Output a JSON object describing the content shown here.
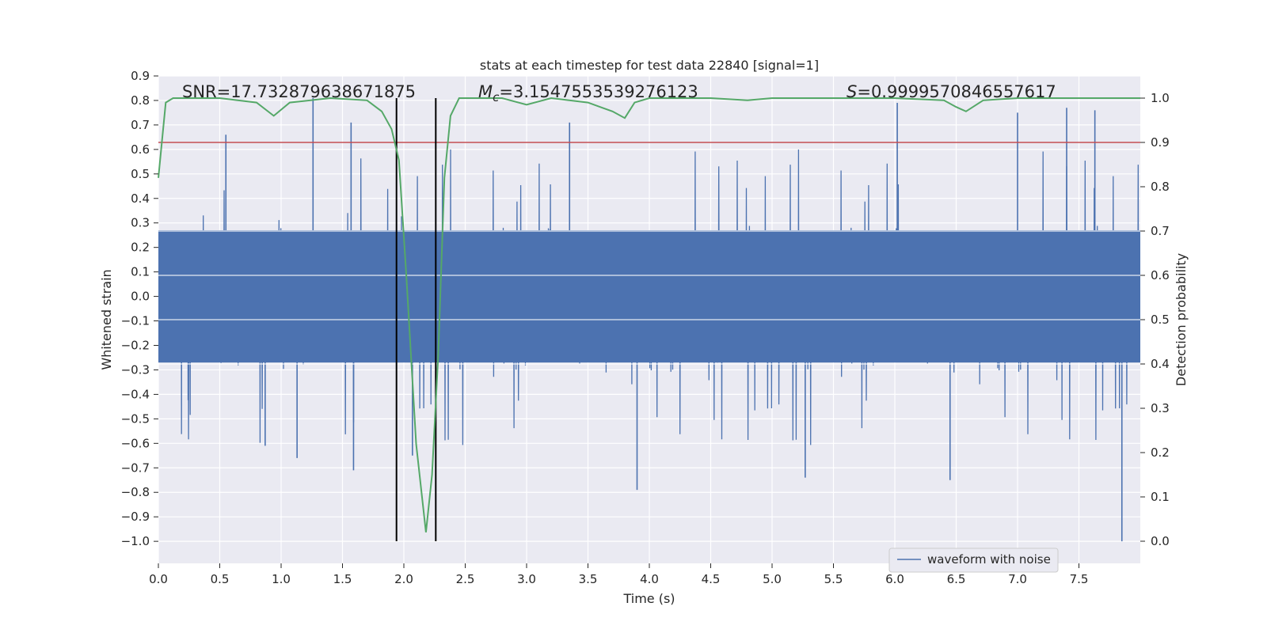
{
  "chart_data": {
    "type": "line",
    "title": "stats at each timestep for test data 22840 [signal=1]",
    "xlabel": "Time (s)",
    "ylabel": "Whitened strain",
    "ylabel_right": "Detection probability",
    "xlim": [
      0.0,
      8.0
    ],
    "ylim": [
      -1.09,
      0.9
    ],
    "ylim_right": [
      -0.05,
      1.05
    ],
    "x_ticks": [
      0.0,
      0.5,
      1.0,
      1.5,
      2.0,
      2.5,
      3.0,
      3.5,
      4.0,
      4.5,
      5.0,
      5.5,
      6.0,
      6.5,
      7.0,
      7.5
    ],
    "x_tick_labels": [
      "0.0",
      "0.5",
      "1.0",
      "1.5",
      "2.0",
      "2.5",
      "3.0",
      "3.5",
      "4.0",
      "4.5",
      "5.0",
      "5.5",
      "6.0",
      "6.5",
      "7.0",
      "7.5"
    ],
    "y_ticks": [
      0.9,
      0.8,
      0.7,
      0.6,
      0.5,
      0.4,
      0.3,
      0.2,
      0.1,
      0.0,
      -0.1,
      -0.2,
      -0.3,
      -0.4,
      -0.5,
      -0.6,
      -0.7,
      -0.8,
      -0.9,
      -1.0
    ],
    "y_tick_labels": [
      "0.9",
      "0.8",
      "0.7",
      "0.6",
      "0.5",
      "0.4",
      "0.3",
      "0.2",
      "0.1",
      "0.0",
      "−0.1",
      "−0.2",
      "−0.3",
      "−0.4",
      "−0.5",
      "−0.6",
      "−0.7",
      "−0.8",
      "−0.9",
      "−1.0"
    ],
    "y_ticks_right": [
      1.0,
      0.9,
      0.8,
      0.7,
      0.6,
      0.5,
      0.4,
      0.3,
      0.2,
      0.1,
      0.0
    ],
    "y_tick_labels_right": [
      "1.0",
      "0.9",
      "0.8",
      "0.7",
      "0.6",
      "0.5",
      "0.4",
      "0.3",
      "0.2",
      "0.1",
      "0.0"
    ],
    "grid": true,
    "legend_position": "lower-right",
    "annotations": {
      "snr": "SNR=17.732879638671875",
      "mc_symbol": "M",
      "mc_subscript": "c",
      "mc_value": "=3.1547553539276123",
      "s_symbol": "S",
      "s_value": "=0.9999570846557617"
    },
    "vertical_lines_x": [
      1.94,
      2.26
    ],
    "threshold_probability": 0.9,
    "series": [
      {
        "name": "waveform with noise",
        "axis": "left",
        "color": "#4c72b0",
        "style": "noise",
        "amplitude_core": 0.27,
        "spikes": [
          {
            "x": 0.55,
            "y": 0.66
          },
          {
            "x": 1.26,
            "y": 0.81
          },
          {
            "x": 1.57,
            "y": 0.71
          },
          {
            "x": 3.35,
            "y": 0.71
          },
          {
            "x": 6.02,
            "y": 0.79
          },
          {
            "x": 7.0,
            "y": 0.75
          },
          {
            "x": 7.4,
            "y": 0.77
          },
          {
            "x": 7.63,
            "y": 0.76
          },
          {
            "x": 1.13,
            "y": -0.66
          },
          {
            "x": 1.59,
            "y": -0.71
          },
          {
            "x": 2.07,
            "y": -0.65
          },
          {
            "x": 3.9,
            "y": -0.79
          },
          {
            "x": 5.27,
            "y": -0.74
          },
          {
            "x": 6.45,
            "y": -0.75
          },
          {
            "x": 7.85,
            "y": -1.0
          },
          {
            "x": 0.87,
            "y": -0.61
          }
        ]
      },
      {
        "name": "detection probability",
        "axis": "right",
        "color": "#55a868",
        "x": [
          0.0,
          0.06,
          0.12,
          0.5,
          0.8,
          0.94,
          1.07,
          1.4,
          1.7,
          1.82,
          1.9,
          1.96,
          2.02,
          2.1,
          2.18,
          2.23,
          2.28,
          2.33,
          2.38,
          2.45,
          2.5,
          2.8,
          3.0,
          3.2,
          3.5,
          3.7,
          3.8,
          3.88,
          4.0,
          4.5,
          4.8,
          5.0,
          5.5,
          6.0,
          6.4,
          6.5,
          6.58,
          6.72,
          7.0,
          8.0
        ],
        "values": [
          0.82,
          0.99,
          1.0,
          1.0,
          0.99,
          0.96,
          0.99,
          1.0,
          0.995,
          0.97,
          0.93,
          0.86,
          0.6,
          0.22,
          0.02,
          0.15,
          0.42,
          0.82,
          0.96,
          1.0,
          1.0,
          1.0,
          0.985,
          1.0,
          0.99,
          0.97,
          0.955,
          0.99,
          1.0,
          1.0,
          0.995,
          1.0,
          1.0,
          1.0,
          0.995,
          0.98,
          0.97,
          0.995,
          1.0,
          1.0
        ]
      },
      {
        "name": "threshold",
        "axis": "right",
        "color": "#c44e52",
        "x": [
          0.0,
          8.0
        ],
        "values": [
          0.9,
          0.9
        ]
      }
    ],
    "colors": {
      "plot_background": "#eaeaf2",
      "grid": "#ffffff",
      "vertical_lines": "#000000"
    }
  }
}
